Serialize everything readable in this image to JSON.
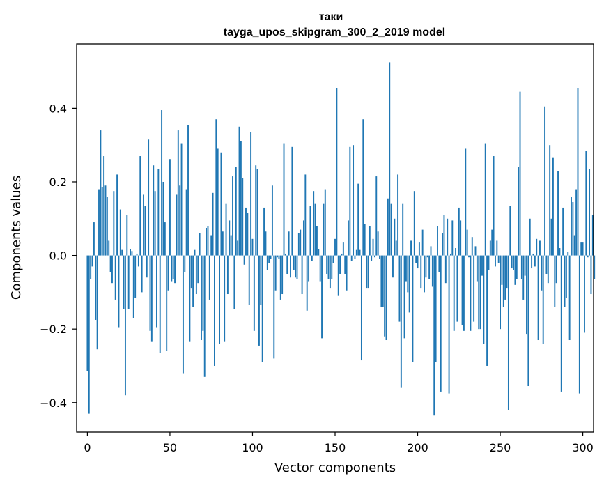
{
  "chart_data": {
    "type": "bar",
    "title": "таки",
    "subtitle": "tayga_upos_skipgram_300_2_2019 model",
    "xlabel": "Vector components",
    "ylabel": "Components values",
    "xlim": [
      -6.5,
      306.5
    ],
    "ylim": [
      -0.48,
      0.575
    ],
    "xticks": [
      0,
      50,
      100,
      150,
      200,
      250,
      300
    ],
    "yticks": [
      -0.4,
      -0.2,
      0.0,
      0.2,
      0.4
    ],
    "ytick_labels": [
      "−0.4",
      "−0.2",
      "0.0",
      "0.2",
      "0.4"
    ],
    "bar_color": "#1f77b4",
    "grid": false,
    "values": [
      -0.315,
      -0.43,
      -0.065,
      -0.03,
      0.09,
      -0.175,
      -0.255,
      0.18,
      0.34,
      0.185,
      0.27,
      0.19,
      0.16,
      0.04,
      -0.045,
      -0.075,
      0.175,
      -0.12,
      0.22,
      -0.195,
      0.125,
      0.015,
      -0.145,
      -0.38,
      0.11,
      -0.145,
      0.018,
      0.012,
      -0.17,
      -0.115,
      0.005,
      -0.03,
      0.27,
      -0.1,
      0.165,
      0.135,
      -0.06,
      0.315,
      -0.205,
      -0.235,
      0.245,
      0.175,
      -0.195,
      0.235,
      -0.265,
      0.395,
      0.2,
      0.09,
      -0.26,
      -0.095,
      0.262,
      -0.07,
      -0.065,
      -0.075,
      0.165,
      0.34,
      0.19,
      0.305,
      -0.32,
      -0.045,
      0.18,
      0.355,
      -0.235,
      -0.09,
      -0.14,
      0.015,
      -0.105,
      -0.075,
      0.06,
      -0.23,
      -0.205,
      -0.33,
      0.075,
      0.08,
      -0.12,
      0.055,
      0.17,
      -0.3,
      0.37,
      0.29,
      -0.24,
      0.28,
      0.065,
      -0.235,
      0.14,
      -0.105,
      0.095,
      0.055,
      0.215,
      -0.145,
      0.24,
      0.04,
      0.35,
      0.31,
      0.21,
      -0.025,
      0.13,
      0.115,
      -0.135,
      0.335,
      0.045,
      -0.205,
      0.245,
      0.235,
      -0.245,
      -0.135,
      -0.29,
      0.13,
      0.065,
      -0.04,
      -0.02,
      -0.01,
      0.19,
      -0.28,
      -0.095,
      -0.005,
      -0.01,
      -0.12,
      -0.105,
      0.305,
      0.005,
      -0.05,
      0.065,
      -0.06,
      0.295,
      -0.04,
      -0.06,
      -0.065,
      0.06,
      0.07,
      -0.105,
      0.095,
      0.22,
      -0.15,
      -0.07,
      0.135,
      -0.015,
      0.175,
      0.14,
      0.08,
      0.018,
      -0.07,
      -0.225,
      0.14,
      0.18,
      -0.05,
      -0.065,
      -0.09,
      -0.065,
      -0.02,
      0.045,
      0.455,
      -0.11,
      -0.05,
      0.005,
      0.035,
      -0.05,
      -0.095,
      0.095,
      0.295,
      -0.015,
      0.3,
      -0.01,
      0.015,
      0.195,
      0.015,
      -0.285,
      0.37,
      0.085,
      -0.09,
      -0.09,
      0.08,
      -0.015,
      0.045,
      -0.005,
      0.215,
      0.065,
      -0.01,
      -0.14,
      -0.14,
      -0.22,
      -0.23,
      0.155,
      0.525,
      0.14,
      -0.06,
      0.1,
      0.04,
      0.22,
      -0.18,
      -0.36,
      0.14,
      -0.225,
      -0.07,
      -0.1,
      -0.155,
      0.04,
      -0.29,
      0.175,
      -0.02,
      -0.035,
      0.035,
      -0.09,
      0.07,
      -0.1,
      -0.06,
      -0.005,
      -0.065,
      0.025,
      -0.085,
      -0.435,
      -0.29,
      0.08,
      -0.045,
      -0.37,
      0.06,
      0.11,
      -0.075,
      0.1,
      -0.375,
      0.005,
      0.095,
      -0.205,
      0.02,
      -0.18,
      0.13,
      0.095,
      -0.19,
      -0.205,
      0.29,
      0.07,
      -0.005,
      -0.205,
      0.05,
      -0.18,
      0.025,
      -0.07,
      -0.2,
      -0.2,
      -0.055,
      -0.24,
      0.305,
      -0.3,
      -0.04,
      0.04,
      0.07,
      0.27,
      -0.03,
      0.04,
      -0.02,
      -0.2,
      -0.08,
      -0.14,
      -0.12,
      -0.09,
      -0.42,
      0.135,
      -0.035,
      -0.04,
      -0.08,
      -0.065,
      0.24,
      0.445,
      -0.065,
      -0.12,
      -0.055,
      -0.215,
      -0.355,
      0.1,
      -0.035,
      0.005,
      -0.03,
      0.045,
      -0.23,
      0.04,
      -0.095,
      -0.24,
      0.405,
      -0.05,
      -0.075,
      0.3,
      0.1,
      0.265,
      -0.14,
      -0.075,
      0.23,
      0.02,
      -0.37,
      0.13,
      -0.14,
      -0.115,
      0.01,
      -0.23,
      0.16,
      0.145,
      0.055,
      0.18,
      0.455,
      -0.375,
      0.035,
      0.035,
      -0.21,
      0.285,
      -0.005,
      0.235,
      -0.105,
      0.11,
      -0.065
    ]
  }
}
